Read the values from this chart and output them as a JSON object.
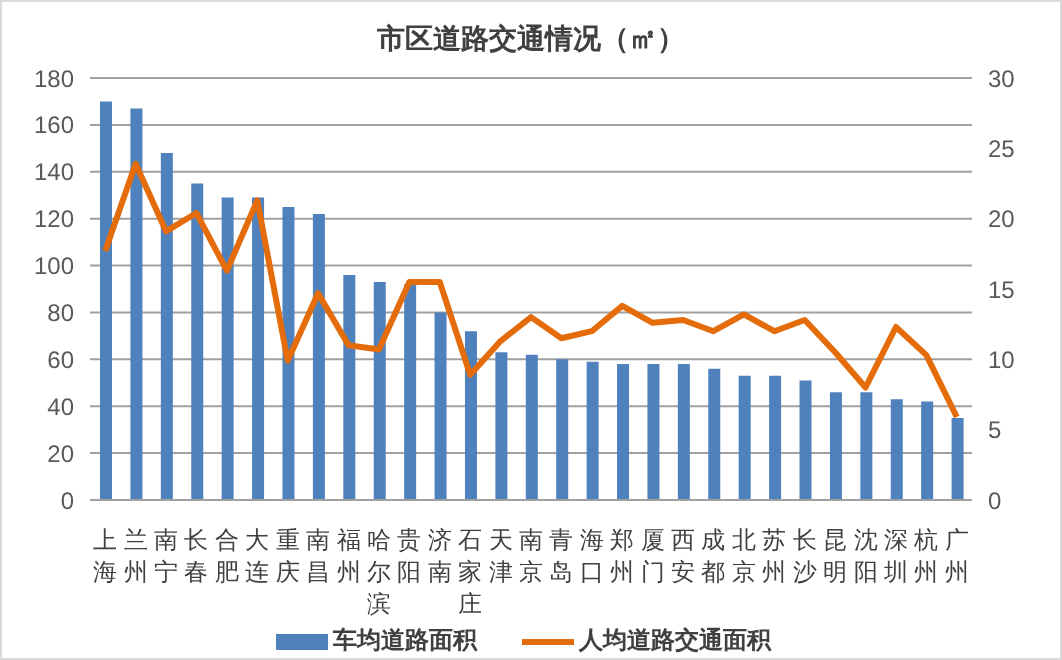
{
  "chart_data": {
    "type": "bar",
    "title": "市区道路交通情况（㎡）",
    "categories": [
      "上海",
      "兰州",
      "南宁",
      "长春",
      "合肥",
      "大连",
      "重庆",
      "南昌",
      "福州",
      "哈尔滨",
      "贵阳",
      "济南",
      "石家庄",
      "天津",
      "南京",
      "青岛",
      "海口",
      "郑州",
      "厦门",
      "西安",
      "成都",
      "北京",
      "苏州",
      "长沙",
      "昆明",
      "沈阳",
      "深圳",
      "杭州",
      "广州"
    ],
    "series": [
      {
        "name": "车均道路面积",
        "color": "#4f81bd",
        "values": [
          170,
          167,
          148,
          135,
          129,
          129,
          125,
          122,
          96,
          93,
          92,
          80,
          72,
          63,
          62,
          60,
          59,
          58,
          58,
          58,
          56,
          53,
          53,
          51,
          46,
          46,
          43,
          42,
          35
        ]
      },
      {
        "name": "人均道路交通面积",
        "type": "line",
        "axis": "y2",
        "color": "#e46c0a",
        "values": [
          17.7,
          23.9,
          19.1,
          20.4,
          16.3,
          21.3,
          9.9,
          14.7,
          11.0,
          10.7,
          15.5,
          15.5,
          8.9,
          11.3,
          13.0,
          11.5,
          12.0,
          13.8,
          12.6,
          12.8,
          12.0,
          13.2,
          12.0,
          12.8,
          10.5,
          8.0,
          12.3,
          10.3,
          5.9
        ]
      }
    ],
    "ylim": [
      0,
      180
    ],
    "yticks": [
      0,
      20,
      40,
      60,
      80,
      100,
      120,
      140,
      160,
      180
    ],
    "y2lim": [
      0,
      30
    ],
    "y2ticks": [
      0,
      5,
      10,
      15,
      20,
      25,
      30
    ],
    "grid": "y",
    "legend": "bottom",
    "marker": "none",
    "line_style": "solid"
  }
}
